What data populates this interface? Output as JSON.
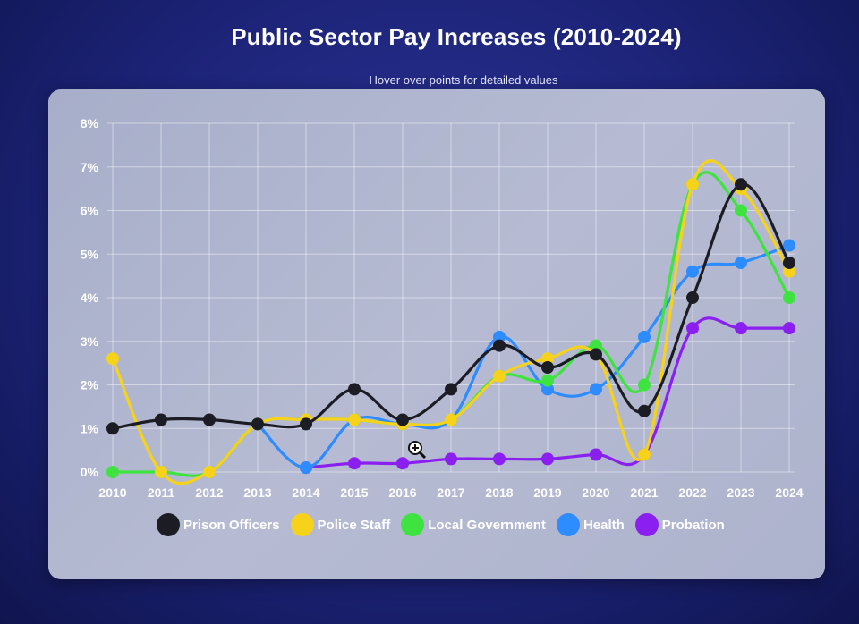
{
  "title": "Public Sector Pay Increases (2010-2024)",
  "subtitle": "Hover over points for detailed values",
  "colors": {
    "Prison Officers": "#1c1c24",
    "Police Staff": "#f7d21a",
    "Local Government": "#3fe33f",
    "Health": "#2d8cff",
    "Probation": "#8a1ff0"
  },
  "legend": [
    "Prison Officers",
    "Police Staff",
    "Local Government",
    "Health",
    "Probation"
  ],
  "chart_data": {
    "type": "line",
    "title": "Public Sector Pay Increases (2010-2024)",
    "subtitle": "Hover over points for detailed values",
    "x": [
      "2010",
      "2011",
      "2012",
      "2013",
      "2014",
      "2015",
      "2016",
      "2017",
      "2018",
      "2019",
      "2020",
      "2021",
      "2022",
      "2023",
      "2024"
    ],
    "y_ticks": [
      "0%",
      "1%",
      "2%",
      "3%",
      "4%",
      "5%",
      "6%",
      "7%",
      "8%"
    ],
    "ylim": [
      0,
      8
    ],
    "grid": true,
    "legend_position": "bottom",
    "series": [
      {
        "name": "Prison Officers",
        "values": [
          1.0,
          1.2,
          1.2,
          1.1,
          1.1,
          1.9,
          1.2,
          1.9,
          2.9,
          2.4,
          2.7,
          1.4,
          4.0,
          6.6,
          4.8
        ]
      },
      {
        "name": "Police Staff",
        "values": [
          2.6,
          0.0,
          0.0,
          1.1,
          1.2,
          1.2,
          1.1,
          1.2,
          2.2,
          2.6,
          2.7,
          0.4,
          6.6,
          6.5,
          4.6
        ]
      },
      {
        "name": "Local Government",
        "values": [
          0.0,
          0.0,
          0.0,
          1.1,
          1.2,
          1.2,
          1.1,
          1.2,
          2.2,
          2.1,
          2.9,
          2.0,
          6.6,
          6.0,
          4.0
        ]
      },
      {
        "name": "Health",
        "values": [
          null,
          null,
          null,
          1.1,
          0.1,
          1.2,
          1.1,
          1.2,
          3.1,
          1.9,
          1.9,
          3.1,
          4.6,
          4.8,
          5.2
        ]
      },
      {
        "name": "Probation",
        "values": [
          null,
          null,
          null,
          null,
          0.1,
          0.2,
          0.2,
          0.3,
          0.3,
          0.3,
          0.4,
          0.4,
          3.3,
          3.3,
          3.3
        ]
      }
    ]
  }
}
